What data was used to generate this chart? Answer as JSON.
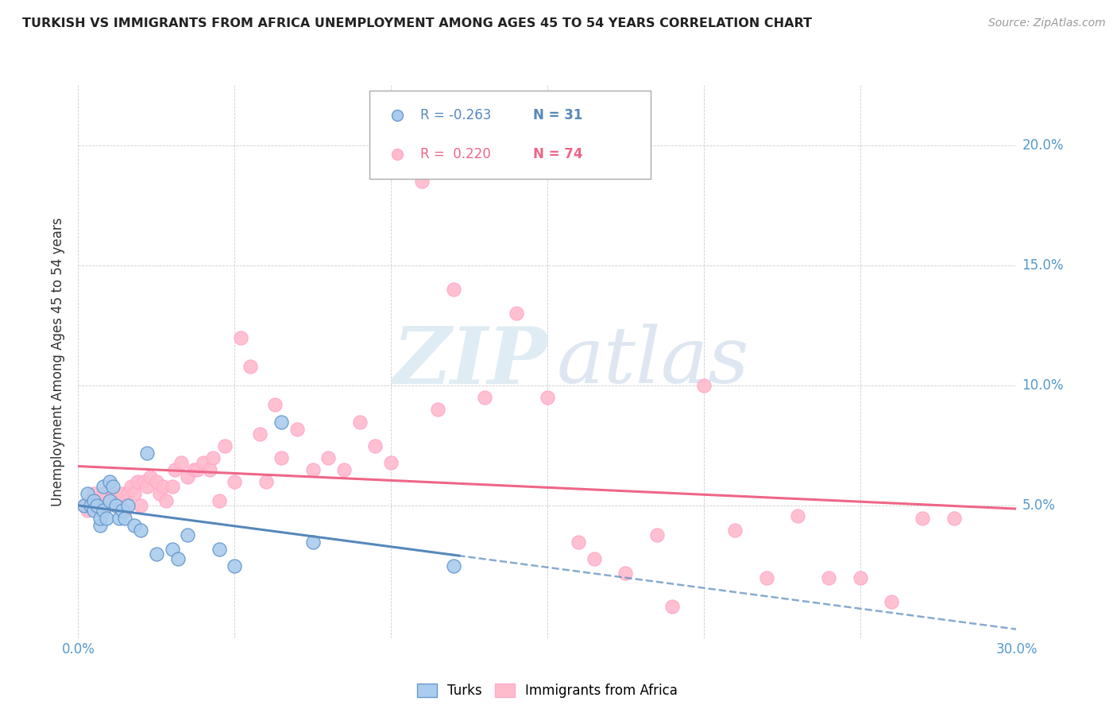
{
  "title": "TURKISH VS IMMIGRANTS FROM AFRICA UNEMPLOYMENT AMONG AGES 45 TO 54 YEARS CORRELATION CHART",
  "source": "Source: ZipAtlas.com",
  "ylabel": "Unemployment Among Ages 45 to 54 years",
  "xlim": [
    0.0,
    0.3
  ],
  "ylim": [
    -0.005,
    0.225
  ],
  "yticks": [
    0.05,
    0.1,
    0.15,
    0.2
  ],
  "ytick_labels": [
    "5.0%",
    "10.0%",
    "15.0%",
    "20.0%"
  ],
  "xticks": [
    0.0,
    0.05,
    0.1,
    0.15,
    0.2,
    0.25,
    0.3
  ],
  "xtick_labels": [
    "0.0%",
    "",
    "",
    "",
    "",
    "",
    "30.0%"
  ],
  "watermark_zip": "ZIP",
  "watermark_atlas": "atlas",
  "legend_turks_R": "-0.263",
  "legend_turks_N": "31",
  "legend_africa_R": "0.220",
  "legend_africa_N": "74",
  "turks_fill": "#aaccee",
  "turks_edge": "#6699cc",
  "africa_fill": "#ffbbcc",
  "africa_edge": "#ffaacc",
  "turks_line_color": "#5588bb",
  "africa_line_color": "#ee6688",
  "turks_scatter_x": [
    0.002,
    0.003,
    0.004,
    0.005,
    0.005,
    0.006,
    0.007,
    0.007,
    0.008,
    0.008,
    0.009,
    0.01,
    0.01,
    0.011,
    0.012,
    0.013,
    0.014,
    0.015,
    0.016,
    0.018,
    0.02,
    0.022,
    0.025,
    0.03,
    0.032,
    0.035,
    0.045,
    0.05,
    0.065,
    0.075,
    0.12
  ],
  "turks_scatter_y": [
    0.05,
    0.055,
    0.05,
    0.048,
    0.052,
    0.05,
    0.042,
    0.045,
    0.048,
    0.058,
    0.045,
    0.06,
    0.052,
    0.058,
    0.05,
    0.045,
    0.048,
    0.045,
    0.05,
    0.042,
    0.04,
    0.072,
    0.03,
    0.032,
    0.028,
    0.038,
    0.032,
    0.025,
    0.085,
    0.035,
    0.025
  ],
  "africa_scatter_x": [
    0.002,
    0.003,
    0.004,
    0.005,
    0.005,
    0.006,
    0.007,
    0.008,
    0.008,
    0.009,
    0.01,
    0.01,
    0.011,
    0.012,
    0.013,
    0.014,
    0.015,
    0.016,
    0.017,
    0.018,
    0.019,
    0.02,
    0.021,
    0.022,
    0.023,
    0.025,
    0.026,
    0.027,
    0.028,
    0.03,
    0.031,
    0.033,
    0.035,
    0.037,
    0.038,
    0.04,
    0.042,
    0.043,
    0.045,
    0.047,
    0.05,
    0.052,
    0.055,
    0.058,
    0.06,
    0.063,
    0.065,
    0.07,
    0.075,
    0.08,
    0.085,
    0.09,
    0.095,
    0.1,
    0.11,
    0.115,
    0.12,
    0.13,
    0.14,
    0.15,
    0.16,
    0.165,
    0.175,
    0.185,
    0.19,
    0.2,
    0.21,
    0.22,
    0.23,
    0.24,
    0.25,
    0.26,
    0.27,
    0.28
  ],
  "africa_scatter_y": [
    0.05,
    0.048,
    0.052,
    0.05,
    0.055,
    0.052,
    0.048,
    0.05,
    0.055,
    0.05,
    0.052,
    0.058,
    0.055,
    0.05,
    0.052,
    0.055,
    0.048,
    0.055,
    0.058,
    0.055,
    0.06,
    0.05,
    0.06,
    0.058,
    0.062,
    0.06,
    0.055,
    0.058,
    0.052,
    0.058,
    0.065,
    0.068,
    0.062,
    0.065,
    0.065,
    0.068,
    0.065,
    0.07,
    0.052,
    0.075,
    0.06,
    0.12,
    0.108,
    0.08,
    0.06,
    0.092,
    0.07,
    0.082,
    0.065,
    0.07,
    0.065,
    0.085,
    0.075,
    0.068,
    0.185,
    0.09,
    0.14,
    0.095,
    0.13,
    0.095,
    0.035,
    0.028,
    0.022,
    0.038,
    0.008,
    0.1,
    0.04,
    0.02,
    0.046,
    0.02,
    0.02,
    0.01,
    0.045,
    0.045
  ]
}
